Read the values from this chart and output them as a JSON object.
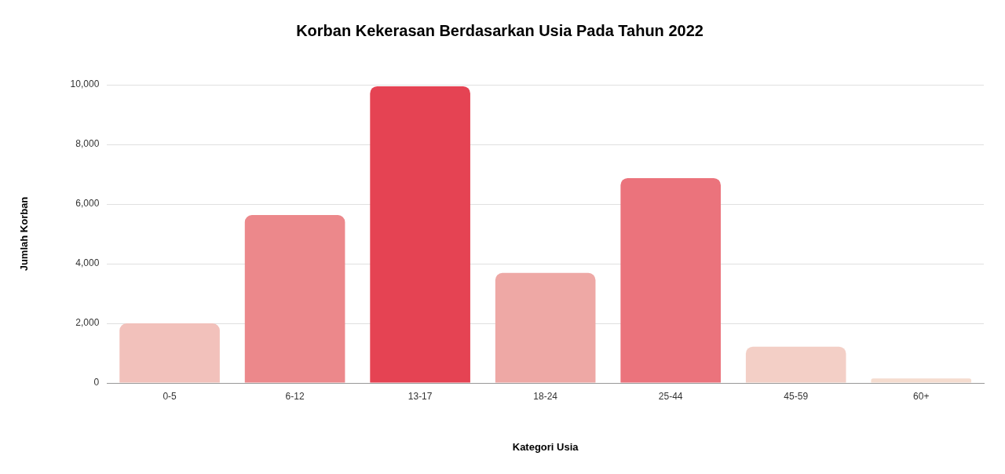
{
  "chart_data": {
    "type": "bar",
    "title": "Korban Kekerasan Berdasarkan Usia Pada Tahun 2022",
    "xlabel": "Kategori Usia",
    "ylabel": "Jumlah Korban",
    "categories": [
      "0-5",
      "6-12",
      "13-17",
      "18-24",
      "25-44",
      "45-59",
      "60+"
    ],
    "values": [
      2000,
      5630,
      9950,
      3690,
      6870,
      1220,
      150
    ],
    "colors": [
      "#f2c1bb",
      "#ec888b",
      "#e54353",
      "#eea8a5",
      "#eb737c",
      "#f3cfc6",
      "#f5dccf"
    ],
    "ylim": [
      0,
      10000
    ],
    "yticks": [
      {
        "value": 0,
        "label": "0"
      },
      {
        "value": 2000,
        "label": "2,000"
      },
      {
        "value": 4000,
        "label": "4,000"
      },
      {
        "value": 6000,
        "label": "6,000"
      },
      {
        "value": 8000,
        "label": "8,000"
      },
      {
        "value": 10000,
        "label": "10,000"
      }
    ],
    "grid": "y",
    "legend": false
  }
}
